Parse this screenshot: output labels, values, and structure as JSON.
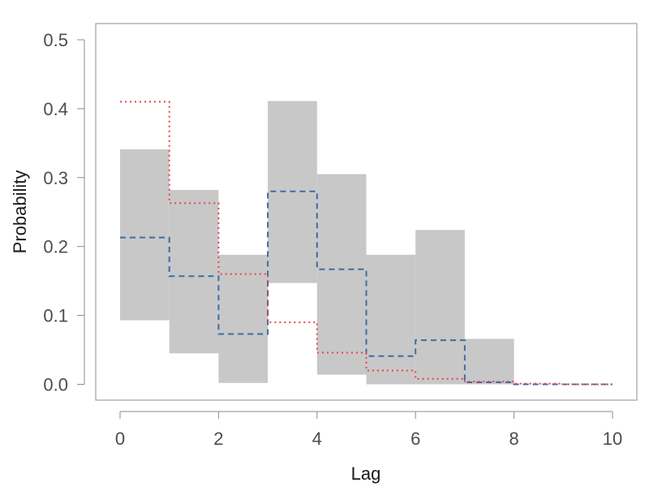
{
  "chart_data": {
    "type": "area",
    "title": "",
    "xlabel": "Lag",
    "ylabel": "Probability",
    "xlim": [
      0,
      10
    ],
    "ylim": [
      0,
      0.5
    ],
    "x_ticks": [
      0,
      2,
      4,
      6,
      8,
      10
    ],
    "x_tick_labels": [
      "0",
      "2",
      "4",
      "6",
      "8",
      "10"
    ],
    "y_ticks": [
      0.0,
      0.1,
      0.2,
      0.3,
      0.4,
      0.5
    ],
    "y_tick_labels": [
      "0.0",
      "0.1",
      "0.2",
      "0.3",
      "0.4",
      "0.5"
    ],
    "grid": false,
    "legend": "none",
    "band": {
      "color": "#c8c8c8",
      "bins": [
        {
          "x0": 0,
          "x1": 1,
          "low": 0.093,
          "high": 0.341
        },
        {
          "x0": 1,
          "x1": 2,
          "low": 0.045,
          "high": 0.282
        },
        {
          "x0": 2,
          "x1": 3,
          "low": 0.002,
          "high": 0.188
        },
        {
          "x0": 3,
          "x1": 4,
          "low": 0.147,
          "high": 0.411
        },
        {
          "x0": 4,
          "x1": 5,
          "low": 0.014,
          "high": 0.305
        },
        {
          "x0": 5,
          "x1": 6,
          "low": 0.0,
          "high": 0.188
        },
        {
          "x0": 6,
          "x1": 7,
          "low": 0.0,
          "high": 0.224
        },
        {
          "x0": 7,
          "x1": 8,
          "low": 0.0,
          "high": 0.066
        }
      ]
    },
    "series": [
      {
        "style": "dashed",
        "color": "#3a6ea5",
        "x": [
          0,
          1,
          2,
          3,
          4,
          5,
          6,
          7,
          8,
          9,
          10
        ],
        "values": [
          0.213,
          0.157,
          0.073,
          0.28,
          0.167,
          0.041,
          0.064,
          0.003,
          0.0,
          0.0,
          0.0
        ]
      },
      {
        "style": "dotted",
        "color": "#f0404a",
        "x": [
          0,
          1,
          2,
          3,
          4,
          5,
          6,
          7,
          8,
          9,
          10
        ],
        "values": [
          0.41,
          0.263,
          0.16,
          0.09,
          0.046,
          0.02,
          0.008,
          0.004,
          0.001,
          0.0,
          0.0
        ]
      }
    ]
  }
}
